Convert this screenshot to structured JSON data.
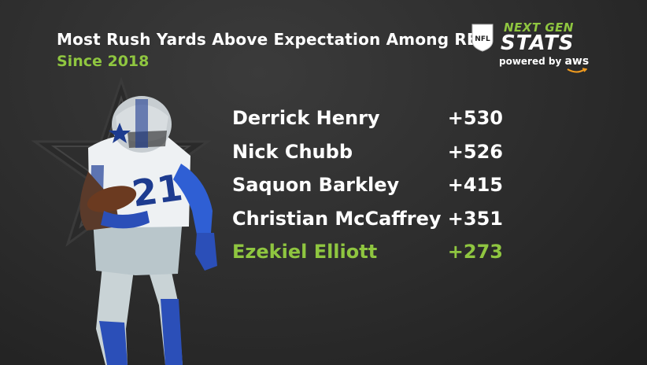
{
  "header": {
    "title": "Most Rush Yards Above Expectation Among RB",
    "subtitle": "Since 2018"
  },
  "logo": {
    "top_text": "NEXT GEN",
    "main_text": "STATS",
    "powered_text": "powered by",
    "aws_text": "aws",
    "shield_text": "NFL"
  },
  "leaderboard": [
    {
      "name": "Derrick Henry",
      "value": "+530"
    },
    {
      "name": "Nick Chubb",
      "value": "+526"
    },
    {
      "name": "Saquon Barkley",
      "value": "+415"
    },
    {
      "name": "Christian McCaffrey",
      "value": "+351"
    },
    {
      "name": "Ezekiel Elliott",
      "value": "+273"
    }
  ],
  "colors": {
    "accent": "#8fc640",
    "background": "#2c2c2c",
    "jersey_number": "21"
  }
}
